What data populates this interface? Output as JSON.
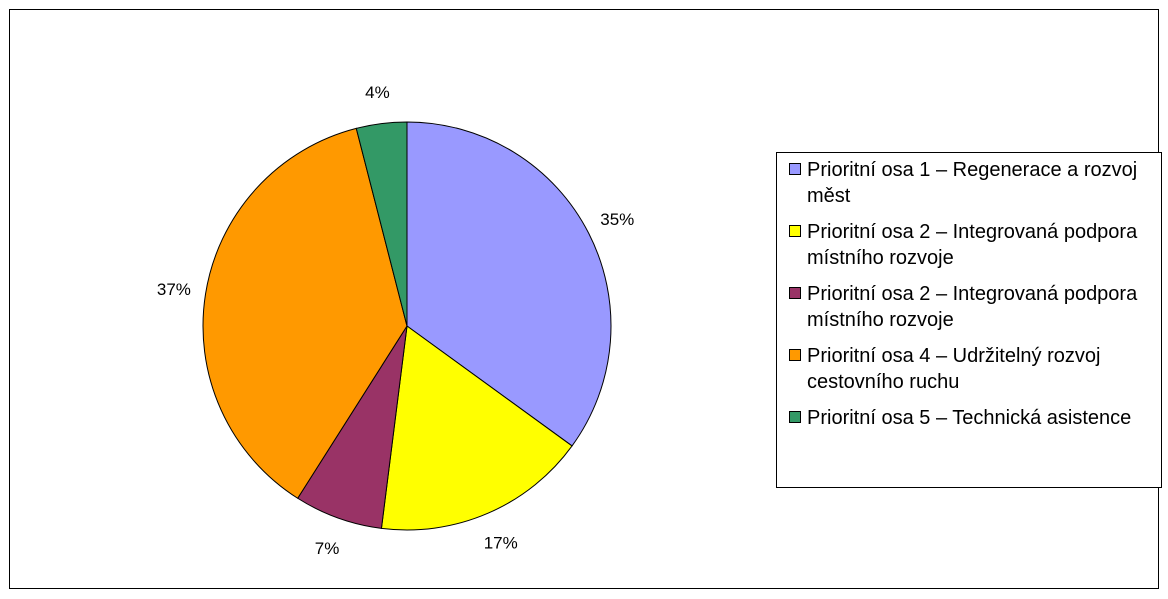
{
  "chart_data": {
    "type": "pie",
    "title": "",
    "legend_position": "right",
    "labels": [
      "Prioritní osa 1 – Regenerace a rozvoj měst",
      "Prioritní osa 2 – Integrovaná podpora místního rozvoje",
      "Prioritní osa 2 – Integrovaná podpora místního rozvoje",
      "Prioritní osa 4 – Udržitelný rozvoj cestovního ruchu",
      "Prioritní osa 5 – Technická asistence"
    ],
    "values": [
      35,
      17,
      7,
      37,
      4
    ],
    "data_labels": [
      "35%",
      "17%",
      "7%",
      "37%",
      "4%"
    ],
    "colors": [
      "#9999ff",
      "#ffff00",
      "#993366",
      "#ff9900",
      "#339966"
    ]
  }
}
